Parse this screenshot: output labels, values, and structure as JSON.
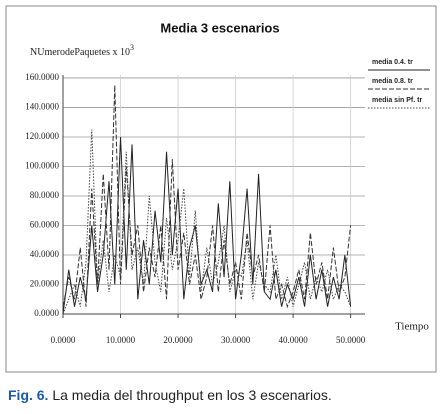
{
  "chart_data": {
    "type": "line",
    "title": "Media 3 escenarios",
    "ylabel": "NUmerodePaquetes x 10",
    "ylabel_exponent": "3",
    "xlabel": "Tiempo",
    "xlim": [
      0,
      52.5
    ],
    "ylim": [
      0,
      162
    ],
    "xticks": [
      {
        "value": 0,
        "label": "0.0000"
      },
      {
        "value": 10,
        "label": "10.0000"
      },
      {
        "value": 20,
        "label": "20.0000"
      },
      {
        "value": 30,
        "label": "30.0000"
      },
      {
        "value": 40,
        "label": "40.0000"
      },
      {
        "value": 50,
        "label": "50.0000"
      }
    ],
    "yticks": [
      {
        "value": 0,
        "label": "0.0000"
      },
      {
        "value": 20,
        "label": "20.0000"
      },
      {
        "value": 40,
        "label": "40.0000"
      },
      {
        "value": 60,
        "label": "60.0000"
      },
      {
        "value": 80,
        "label": "80.0000"
      },
      {
        "value": 100,
        "label": "100.0000"
      },
      {
        "value": 120,
        "label": "120.0000"
      },
      {
        "value": 140,
        "label": "140.0000"
      },
      {
        "value": 160,
        "label": "160.0000"
      }
    ],
    "grid": true,
    "legend": "upper right",
    "x": [
      0,
      1,
      2,
      3,
      4,
      5,
      6,
      7,
      8,
      9,
      10,
      11,
      12,
      13,
      14,
      15,
      16,
      17,
      18,
      19,
      20,
      21,
      22,
      23,
      24,
      25,
      26,
      27,
      28,
      29,
      30,
      31,
      32,
      33,
      34,
      35,
      36,
      37,
      38,
      39,
      40,
      41,
      42,
      43,
      44,
      45,
      46,
      47,
      48,
      49,
      50
    ],
    "series": [
      {
        "name": "media 0.4. tr",
        "color": "#222222",
        "dash": "solid",
        "values": [
          0,
          30,
          5,
          25,
          10,
          60,
          15,
          40,
          90,
          20,
          120,
          30,
          115,
          10,
          50,
          20,
          70,
          35,
          110,
          40,
          85,
          10,
          45,
          60,
          20,
          30,
          15,
          75,
          25,
          90,
          10,
          40,
          85,
          20,
          95,
          15,
          10,
          30,
          5,
          20,
          10,
          25,
          5,
          40,
          10,
          30,
          5,
          25,
          10,
          40,
          5
        ]
      },
      {
        "name": "media 0.8. tr",
        "color": "#333333",
        "dash": "dashed",
        "values": [
          5,
          25,
          10,
          45,
          5,
          85,
          20,
          95,
          30,
          155,
          20,
          100,
          40,
          60,
          15,
          45,
          25,
          60,
          10,
          105,
          30,
          55,
          20,
          40,
          10,
          25,
          60,
          15,
          50,
          20,
          35,
          10,
          55,
          25,
          40,
          15,
          60,
          10,
          20,
          5,
          15,
          30,
          10,
          55,
          20,
          35,
          10,
          45,
          15,
          25,
          60
        ]
      },
      {
        "name": "media sin Pf. tr",
        "color": "#444444",
        "dash": "dotted",
        "values": [
          0,
          10,
          20,
          5,
          35,
          125,
          20,
          50,
          15,
          40,
          25,
          110,
          30,
          45,
          20,
          80,
          35,
          15,
          65,
          30,
          50,
          85,
          25,
          70,
          15,
          45,
          20,
          35,
          60,
          15,
          30,
          25,
          50,
          10,
          35,
          20,
          15,
          40,
          10,
          25,
          5,
          20,
          35,
          10,
          25,
          15,
          30,
          10,
          20,
          15,
          5
        ]
      }
    ]
  },
  "caption": {
    "label": "Fig. 6.",
    "text": "La media del throughput en los 3 escenarios."
  }
}
